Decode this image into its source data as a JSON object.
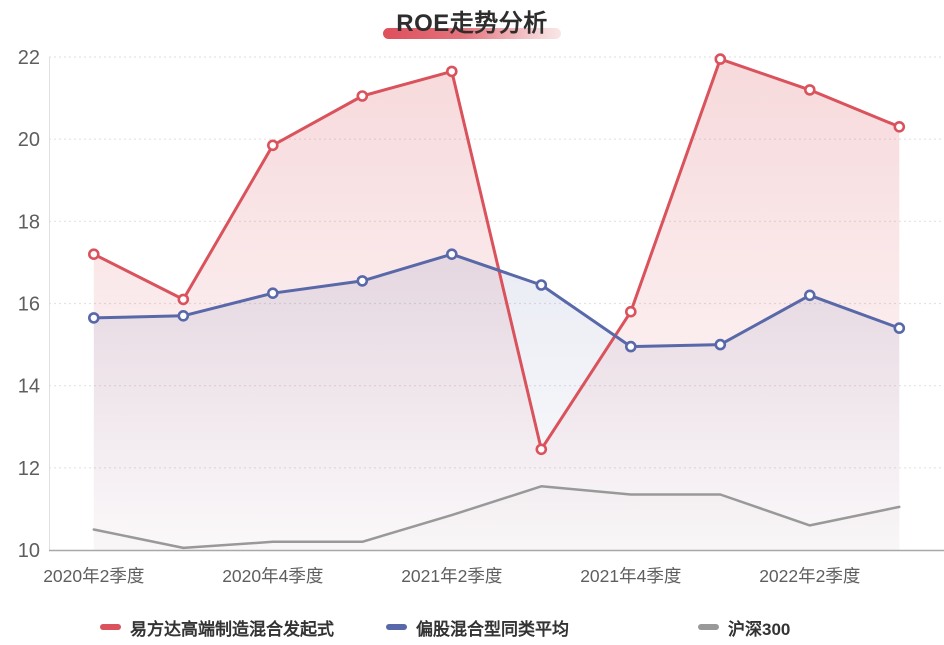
{
  "title": {
    "text": "ROE走势分析"
  },
  "chart_data": {
    "type": "line",
    "title": "ROE走势分析",
    "x_axis": {
      "point_count": 10,
      "labels": [
        {
          "index": 0,
          "text": "2020年2季度"
        },
        {
          "index": 2,
          "text": "2020年4季度"
        },
        {
          "index": 4,
          "text": "2021年2季度"
        },
        {
          "index": 6,
          "text": "2021年4季度"
        },
        {
          "index": 8,
          "text": "2022年2季度"
        }
      ]
    },
    "y_axis": {
      "min": 10,
      "max": 22,
      "ticks": [
        10,
        12,
        14,
        16,
        18,
        20,
        22
      ]
    },
    "layout": {
      "gridlines": "horizontal dotted",
      "legend_position": "bottom",
      "area_fill": "gradient"
    },
    "series": [
      {
        "name": "易方达高端制造混合发起式",
        "color": "#d9525c",
        "symbol": "circle",
        "values": [
          17.2,
          16.1,
          19.85,
          21.05,
          21.65,
          12.45,
          15.8,
          21.95,
          21.2,
          20.3
        ]
      },
      {
        "name": "偏股混合型同类平均",
        "color": "#5868a8",
        "symbol": "circle",
        "values": [
          15.65,
          15.7,
          16.25,
          16.55,
          17.2,
          16.45,
          14.95,
          15.0,
          16.2,
          15.4
        ]
      },
      {
        "name": "沪深300",
        "color": "#999999",
        "symbol": "none",
        "values": [
          10.5,
          10.05,
          10.2,
          10.2,
          10.85,
          11.55,
          11.35,
          11.35,
          10.6,
          11.05
        ]
      }
    ],
    "accent": {
      "title_underline_from": "#dd4f5b",
      "title_underline_to": "#f2c6c9"
    },
    "text_colors": {
      "axis_label": "#5e5e5e",
      "legend_label": "#333333",
      "title": "#2d2d2d"
    }
  }
}
